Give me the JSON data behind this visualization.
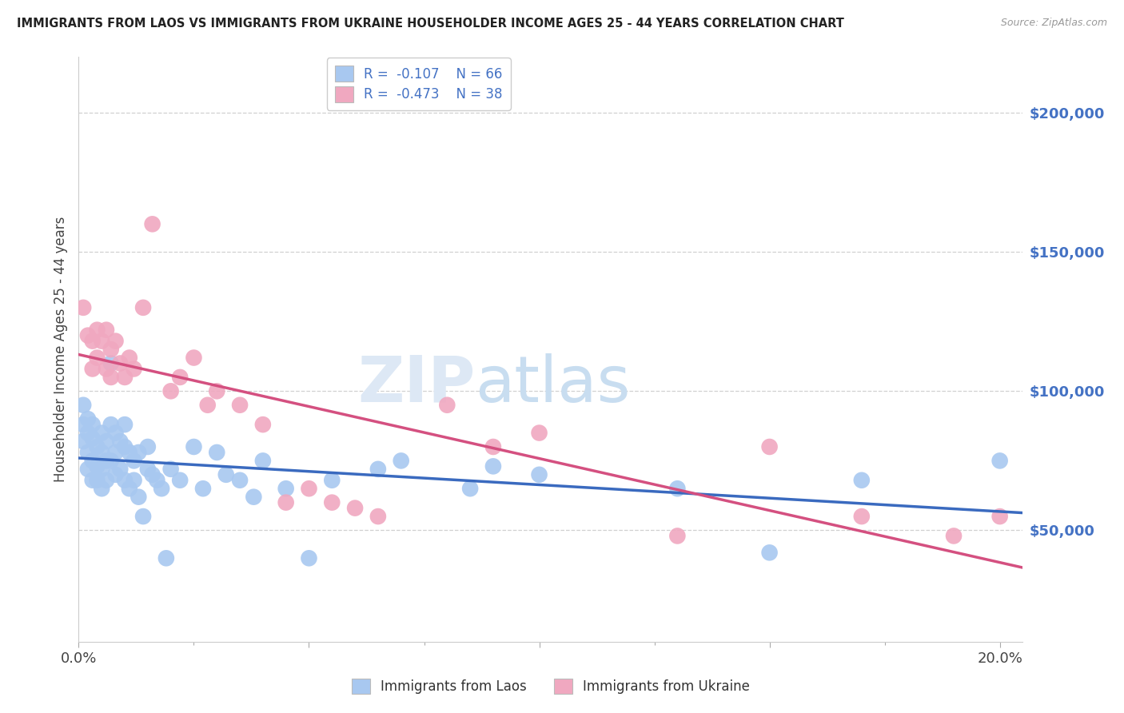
{
  "title": "IMMIGRANTS FROM LAOS VS IMMIGRANTS FROM UKRAINE HOUSEHOLDER INCOME AGES 25 - 44 YEARS CORRELATION CHART",
  "source": "Source: ZipAtlas.com",
  "ylabel": "Householder Income Ages 25 - 44 years",
  "ytick_labels": [
    "$50,000",
    "$100,000",
    "$150,000",
    "$200,000"
  ],
  "ytick_vals": [
    50000,
    100000,
    150000,
    200000
  ],
  "ylim": [
    10000,
    220000
  ],
  "xlim": [
    0.0,
    0.205
  ],
  "laos_R": "-0.107",
  "laos_N": "66",
  "ukraine_R": "-0.473",
  "ukraine_N": "38",
  "laos_color": "#a8c8f0",
  "ukraine_color": "#f0a8c0",
  "laos_line_color": "#3a6abf",
  "ukraine_line_color": "#d45080",
  "background_color": "#ffffff",
  "grid_color": "#d0d0d0",
  "watermark_zip": "ZIP",
  "watermark_atlas": "atlas",
  "legend_label_laos": "Immigrants from Laos",
  "legend_label_ukraine": "Immigrants from Ukraine",
  "laos_x": [
    0.001,
    0.001,
    0.001,
    0.002,
    0.002,
    0.002,
    0.002,
    0.003,
    0.003,
    0.003,
    0.003,
    0.004,
    0.004,
    0.004,
    0.005,
    0.005,
    0.005,
    0.005,
    0.006,
    0.006,
    0.006,
    0.007,
    0.007,
    0.007,
    0.008,
    0.008,
    0.008,
    0.009,
    0.009,
    0.01,
    0.01,
    0.01,
    0.011,
    0.011,
    0.012,
    0.012,
    0.013,
    0.013,
    0.014,
    0.015,
    0.015,
    0.016,
    0.017,
    0.018,
    0.019,
    0.02,
    0.022,
    0.025,
    0.027,
    0.03,
    0.032,
    0.035,
    0.038,
    0.04,
    0.045,
    0.05,
    0.055,
    0.065,
    0.07,
    0.085,
    0.09,
    0.1,
    0.13,
    0.15,
    0.17,
    0.2
  ],
  "laos_y": [
    95000,
    88000,
    82000,
    90000,
    85000,
    78000,
    72000,
    88000,
    83000,
    75000,
    68000,
    80000,
    73000,
    68000,
    85000,
    78000,
    72000,
    65000,
    82000,
    75000,
    68000,
    110000,
    88000,
    75000,
    85000,
    78000,
    70000,
    82000,
    72000,
    88000,
    80000,
    68000,
    78000,
    65000,
    75000,
    68000,
    78000,
    62000,
    55000,
    80000,
    72000,
    70000,
    68000,
    65000,
    40000,
    72000,
    68000,
    80000,
    65000,
    78000,
    70000,
    68000,
    62000,
    75000,
    65000,
    40000,
    68000,
    72000,
    75000,
    65000,
    73000,
    70000,
    65000,
    42000,
    68000,
    75000
  ],
  "ukraine_x": [
    0.001,
    0.002,
    0.003,
    0.003,
    0.004,
    0.004,
    0.005,
    0.006,
    0.006,
    0.007,
    0.007,
    0.008,
    0.009,
    0.01,
    0.011,
    0.012,
    0.014,
    0.016,
    0.02,
    0.022,
    0.025,
    0.028,
    0.03,
    0.035,
    0.04,
    0.045,
    0.05,
    0.055,
    0.06,
    0.065,
    0.08,
    0.09,
    0.1,
    0.13,
    0.15,
    0.17,
    0.19,
    0.2
  ],
  "ukraine_y": [
    130000,
    120000,
    118000,
    108000,
    122000,
    112000,
    118000,
    122000,
    108000,
    115000,
    105000,
    118000,
    110000,
    105000,
    112000,
    108000,
    130000,
    160000,
    100000,
    105000,
    112000,
    95000,
    100000,
    95000,
    88000,
    60000,
    65000,
    60000,
    58000,
    55000,
    95000,
    80000,
    85000,
    48000,
    80000,
    55000,
    48000,
    55000
  ]
}
